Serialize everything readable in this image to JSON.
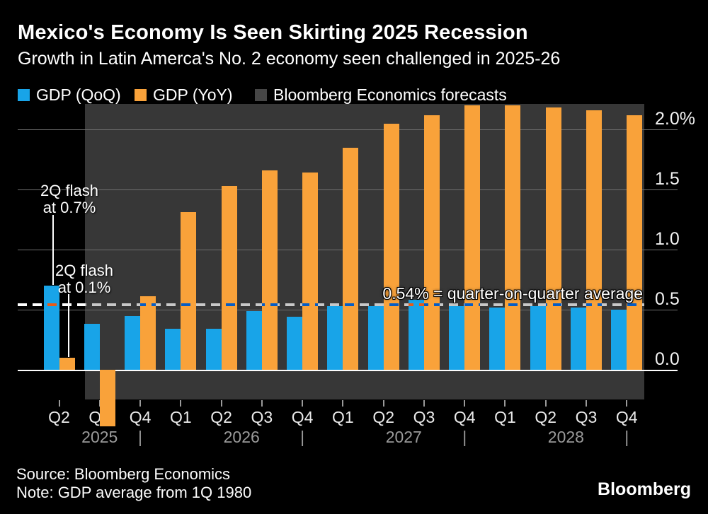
{
  "title": "Mexico's Economy Is Seen Skirting 2025 Recession",
  "subtitle": "Growth in Latin Amerca's No. 2 economy seen challenged in 2025-26",
  "legend": {
    "items": [
      {
        "label": "GDP (QoQ)",
        "color": "#18A4E8"
      },
      {
        "label": "GDP (YoY)",
        "color": "#F9A23A"
      },
      {
        "label": "Bloomberg Economics forecasts",
        "color": "#464646"
      }
    ]
  },
  "annotations": {
    "flash_qoq": {
      "line1": "2Q flash",
      "line2": "at 0.7%"
    },
    "flash_yoy": {
      "line1": "2Q flash",
      "line2": "at 0.1%"
    },
    "average_label": "0.54% = quarter-on-quarter average"
  },
  "footer": {
    "source": "Source: Bloomberg Economics",
    "note": "Note: GDP average from 1Q 1980",
    "logo": "Bloomberg"
  },
  "chart_data": {
    "type": "bar",
    "title": "Mexico's Economy Is Seen Skirting 2025 Recession",
    "subtitle": "Growth in Latin Amerca's No. 2 economy seen challenged in 2025-26",
    "categories": [
      "Q2",
      "Q3",
      "Q4",
      "Q1",
      "Q2",
      "Q3",
      "Q4",
      "Q1",
      "Q2",
      "Q3",
      "Q4",
      "Q1",
      "Q2",
      "Q3",
      "Q4"
    ],
    "year_groups": [
      {
        "label": "2025",
        "from": 0,
        "to": 2
      },
      {
        "label": "2026",
        "from": 3,
        "to": 6
      },
      {
        "label": "2027",
        "from": 7,
        "to": 10
      },
      {
        "label": "2028",
        "from": 11,
        "to": 14
      }
    ],
    "year_separator_indices": [
      2,
      6,
      10,
      14
    ],
    "series": [
      {
        "name": "GDP (QoQ)",
        "color": "#18A4E8",
        "values": [
          0.7,
          0.38,
          0.45,
          0.34,
          0.34,
          0.49,
          0.44,
          0.53,
          0.53,
          0.58,
          0.53,
          0.52,
          0.53,
          0.52,
          0.5
        ]
      },
      {
        "name": "GDP (YoY)",
        "color": "#F9A23A",
        "values": [
          0.1,
          -0.47,
          0.61,
          1.31,
          1.53,
          1.66,
          1.64,
          1.85,
          2.05,
          2.12,
          2.2,
          2.2,
          2.18,
          2.16,
          2.12
        ]
      }
    ],
    "average_line_value": 0.54,
    "forecast": {
      "label": "Bloomberg Economics forecasts",
      "start_category_index": 1,
      "band_color": "#373737"
    },
    "yticks": [
      {
        "label": "2.0%",
        "value": 2.0
      },
      {
        "label": "1.5",
        "value": 1.5
      },
      {
        "label": "1.0",
        "value": 1.0
      },
      {
        "label": "0.5",
        "value": 0.5
      },
      {
        "label": "0.0",
        "value": 0.0
      }
    ],
    "ylim": [
      -0.6,
      2.25
    ],
    "xlabel": "",
    "ylabel": "",
    "grid": true,
    "legend_position": "top"
  }
}
